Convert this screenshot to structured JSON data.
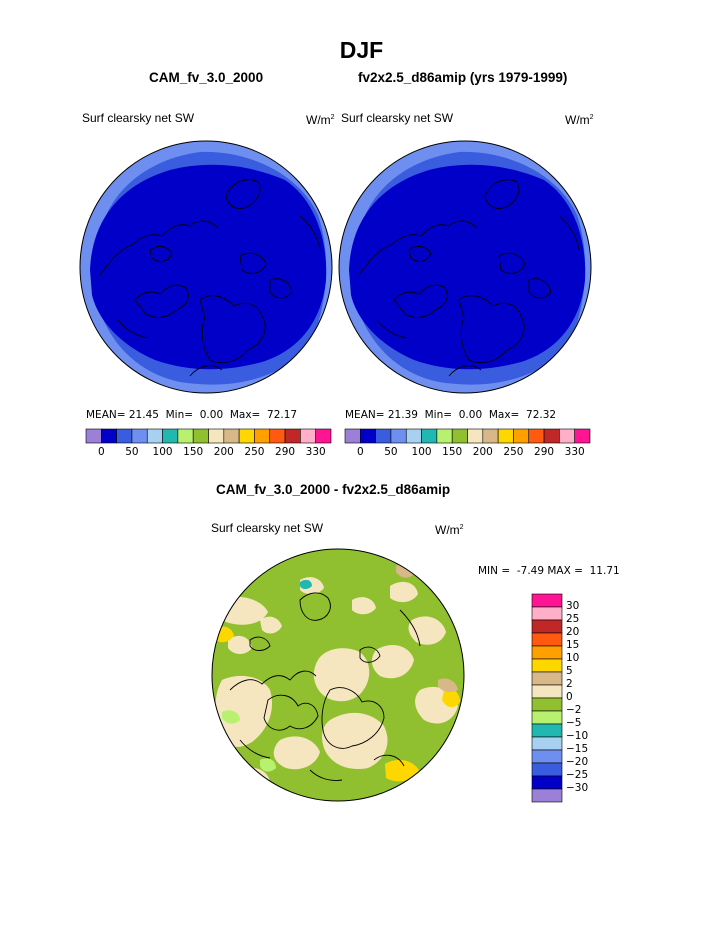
{
  "page": {
    "title": "DJF"
  },
  "chart_data": [
    {
      "type": "heatmap",
      "panel_title": "CAM_fv_3.0_2000",
      "variable": "Surf clearsky net SW",
      "units": "W/m",
      "units_sup": "2",
      "stats": {
        "mean_label": "MEAN=",
        "mean": "21.45",
        "min_label": "Min=",
        "min": "0.00",
        "max_label": "Max=",
        "max": "72.17"
      },
      "colorbar": {
        "colors": [
          "#9c7fd6",
          "#0000c8",
          "#3a5de0",
          "#6e8ff0",
          "#a8d0f0",
          "#20b8b0",
          "#b8f070",
          "#90c030",
          "#f5e6c0",
          "#d8b888",
          "#ffd700",
          "#ffa000",
          "#ff5a10",
          "#c02828",
          "#ffb0c8",
          "#ff1493"
        ],
        "tick_labels": [
          "0",
          "50",
          "100",
          "150",
          "200",
          "250",
          "290",
          "330"
        ]
      },
      "value_range": [
        0,
        72.17
      ]
    },
    {
      "type": "heatmap",
      "panel_title": "fv2x2.5_d86amip (yrs 1979-1999)",
      "variable": "Surf clearsky net SW",
      "units": "W/m",
      "units_sup": "2",
      "stats": {
        "mean_label": "MEAN=",
        "mean": "21.39",
        "min_label": "Min=",
        "min": "0.00",
        "max_label": "Max=",
        "max": "72.32"
      },
      "colorbar": {
        "colors": [
          "#9c7fd6",
          "#0000c8",
          "#3a5de0",
          "#6e8ff0",
          "#a8d0f0",
          "#20b8b0",
          "#b8f070",
          "#90c030",
          "#f5e6c0",
          "#d8b888",
          "#ffd700",
          "#ffa000",
          "#ff5a10",
          "#c02828",
          "#ffb0c8",
          "#ff1493"
        ],
        "tick_labels": [
          "0",
          "50",
          "100",
          "150",
          "200",
          "250",
          "290",
          "330"
        ]
      },
      "value_range": [
        0,
        72.32
      ]
    },
    {
      "type": "heatmap",
      "panel_title": "CAM_fv_3.0_2000 - fv2x2.5_d86amip",
      "variable": "Surf clearsky net SW",
      "units": "W/m",
      "units_sup": "2",
      "stats": {
        "min_label": "MIN =",
        "min": "-7.49",
        "max_label": "MAX =",
        "max": "11.71"
      },
      "colorbar": {
        "colors_top_to_bottom": [
          "#ff1493",
          "#ffb0c8",
          "#c02828",
          "#ff5a10",
          "#ffa000",
          "#ffd700",
          "#d8b888",
          "#f5e6c0",
          "#90c030",
          "#b8f070",
          "#20b8b0",
          "#a8d0f0",
          "#6e8ff0",
          "#3a5de0",
          "#0000c8",
          "#9c7fd6"
        ],
        "tick_labels_top_to_bottom": [
          "30",
          "25",
          "20",
          "15",
          "10",
          "5",
          "2",
          "0",
          "−2",
          "−5",
          "−10",
          "−15",
          "−20",
          "−25",
          "−30"
        ]
      },
      "value_range": [
        -7.49,
        11.71
      ]
    }
  ],
  "colors": {
    "background": "#ffffff",
    "coast": "#000000",
    "border": "#000000"
  },
  "map": {
    "projection": "north-polar-stereographic",
    "coastlines": true
  }
}
